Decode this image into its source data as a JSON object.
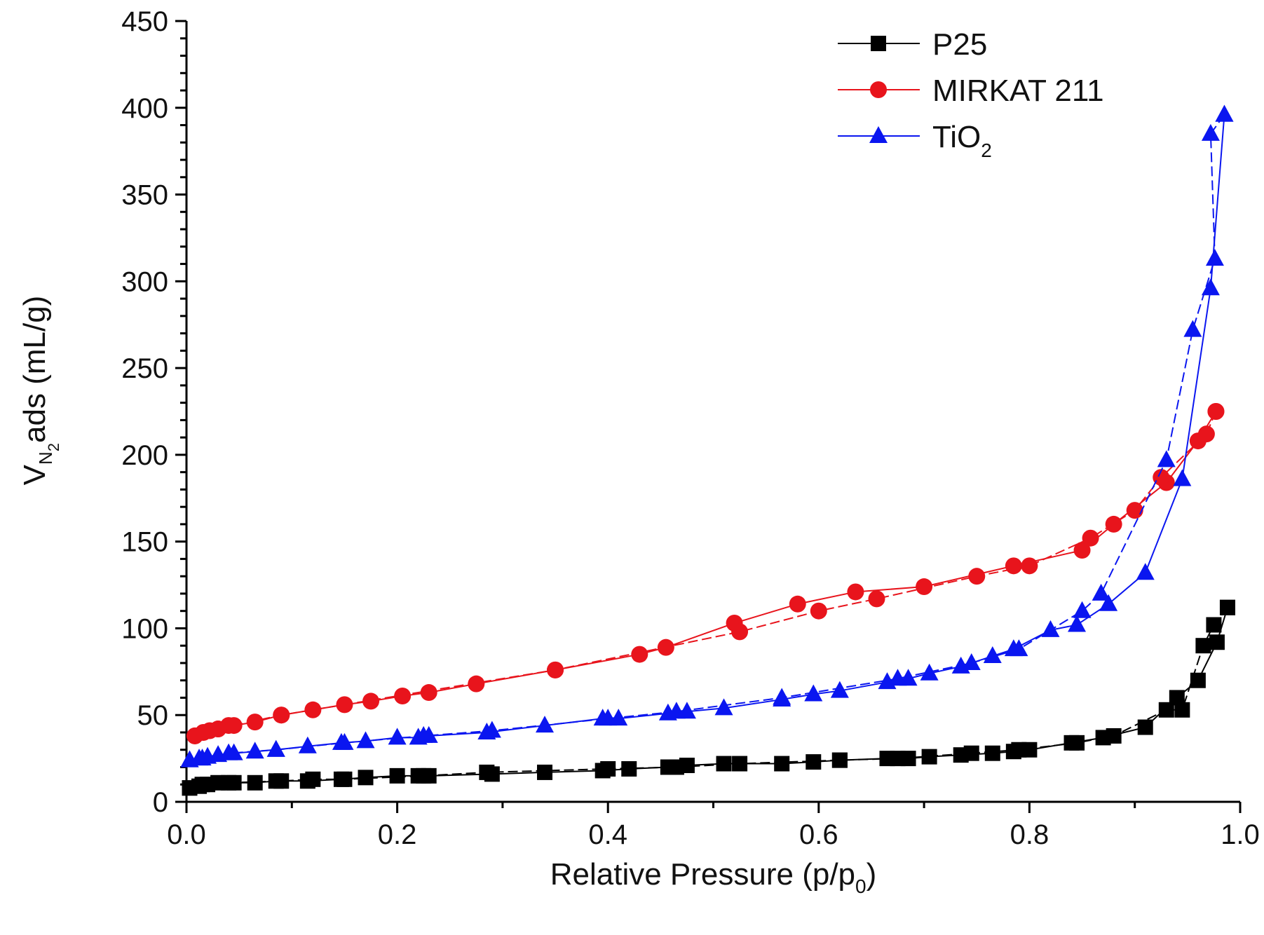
{
  "chart_data": {
    "type": "scatter",
    "title": "",
    "xlabel": {
      "main": "Relative Pressure (p/p",
      "sub": "0",
      "tail": ")"
    },
    "ylabel": {
      "main": "V",
      "sub1": "N",
      "sub2": "2",
      "tail": "ads (mL/g)"
    },
    "xlim": [
      0.0,
      1.0
    ],
    "ylim": [
      0,
      450
    ],
    "xticks": [
      0.0,
      0.2,
      0.4,
      0.6,
      0.8,
      1.0
    ],
    "xtick_labels": [
      "0.0",
      "0.2",
      "0.4",
      "0.6",
      "0.8",
      "1.0"
    ],
    "yticks": [
      0,
      50,
      100,
      150,
      200,
      250,
      300,
      350,
      400,
      450
    ],
    "ytick_labels": [
      "0",
      "50",
      "100",
      "150",
      "200",
      "250",
      "300",
      "350",
      "400",
      "450"
    ],
    "legend_position": "top-right",
    "series": [
      {
        "name": "P25",
        "name_sub": "",
        "color": "#000000",
        "marker": "square",
        "adsorption": [
          [
            0.003,
            8
          ],
          [
            0.012,
            9
          ],
          [
            0.02,
            10
          ],
          [
            0.03,
            11
          ],
          [
            0.045,
            11
          ],
          [
            0.065,
            11
          ],
          [
            0.085,
            12
          ],
          [
            0.115,
            12
          ],
          [
            0.147,
            13
          ],
          [
            0.17,
            14
          ],
          [
            0.2,
            15
          ],
          [
            0.22,
            15
          ],
          [
            0.23,
            15
          ],
          [
            0.29,
            16
          ],
          [
            0.34,
            17
          ],
          [
            0.395,
            18
          ],
          [
            0.42,
            19
          ],
          [
            0.457,
            20
          ],
          [
            0.475,
            21
          ],
          [
            0.51,
            22
          ],
          [
            0.565,
            22
          ],
          [
            0.595,
            23
          ],
          [
            0.62,
            24
          ],
          [
            0.665,
            25
          ],
          [
            0.685,
            25
          ],
          [
            0.705,
            26
          ],
          [
            0.735,
            27
          ],
          [
            0.765,
            28
          ],
          [
            0.785,
            29
          ],
          [
            0.8,
            30
          ],
          [
            0.84,
            34
          ],
          [
            0.87,
            37
          ],
          [
            0.91,
            43
          ],
          [
            0.94,
            60
          ],
          [
            0.96,
            70
          ],
          [
            0.978,
            92
          ],
          [
            0.988,
            112
          ]
        ],
        "desorption": [
          [
            0.988,
            112
          ],
          [
            0.975,
            102
          ],
          [
            0.965,
            90
          ],
          [
            0.945,
            53
          ],
          [
            0.93,
            53
          ],
          [
            0.88,
            38
          ],
          [
            0.845,
            34
          ],
          [
            0.79,
            30
          ],
          [
            0.745,
            28
          ],
          [
            0.675,
            25
          ],
          [
            0.62,
            24
          ],
          [
            0.525,
            22
          ],
          [
            0.465,
            20
          ],
          [
            0.4,
            19
          ],
          [
            0.285,
            17
          ],
          [
            0.225,
            15
          ],
          [
            0.15,
            13
          ],
          [
            0.12,
            13
          ],
          [
            0.09,
            12
          ],
          [
            0.04,
            11
          ],
          [
            0.015,
            10
          ],
          [
            0.003,
            8
          ]
        ]
      },
      {
        "name": "MIRKAT 211",
        "name_sub": "",
        "color": "#e8141c",
        "marker": "circle",
        "adsorption": [
          [
            0.008,
            38
          ],
          [
            0.016,
            40
          ],
          [
            0.022,
            41
          ],
          [
            0.03,
            42
          ],
          [
            0.04,
            44
          ],
          [
            0.045,
            44
          ],
          [
            0.065,
            46
          ],
          [
            0.09,
            50
          ],
          [
            0.12,
            53
          ],
          [
            0.15,
            56
          ],
          [
            0.175,
            58
          ],
          [
            0.205,
            61
          ],
          [
            0.23,
            63
          ],
          [
            0.275,
            68
          ],
          [
            0.35,
            76
          ],
          [
            0.43,
            85
          ],
          [
            0.455,
            89
          ],
          [
            0.52,
            103
          ],
          [
            0.58,
            114
          ],
          [
            0.635,
            121
          ],
          [
            0.7,
            124
          ],
          [
            0.785,
            136
          ],
          [
            0.85,
            145
          ],
          [
            0.88,
            160
          ],
          [
            0.93,
            184
          ],
          [
            0.96,
            208
          ],
          [
            0.977,
            225
          ]
        ],
        "desorption": [
          [
            0.977,
            225
          ],
          [
            0.968,
            212
          ],
          [
            0.925,
            187
          ],
          [
            0.9,
            168
          ],
          [
            0.858,
            152
          ],
          [
            0.8,
            136
          ],
          [
            0.75,
            130
          ],
          [
            0.655,
            117
          ],
          [
            0.6,
            110
          ],
          [
            0.525,
            98
          ],
          [
            0.35,
            76
          ],
          [
            0.09,
            50
          ],
          [
            0.03,
            42
          ],
          [
            0.008,
            38
          ]
        ]
      },
      {
        "name": "TiO",
        "name_sub": "2",
        "color": "#0a16f0",
        "marker": "triangle",
        "adsorption": [
          [
            0.003,
            24
          ],
          [
            0.012,
            25
          ],
          [
            0.02,
            26
          ],
          [
            0.03,
            27
          ],
          [
            0.045,
            28
          ],
          [
            0.065,
            29
          ],
          [
            0.085,
            30
          ],
          [
            0.115,
            32
          ],
          [
            0.147,
            34
          ],
          [
            0.17,
            35
          ],
          [
            0.2,
            37
          ],
          [
            0.22,
            37
          ],
          [
            0.23,
            38
          ],
          [
            0.285,
            40
          ],
          [
            0.34,
            44
          ],
          [
            0.395,
            48
          ],
          [
            0.41,
            48
          ],
          [
            0.457,
            51
          ],
          [
            0.475,
            52
          ],
          [
            0.51,
            54
          ],
          [
            0.565,
            59
          ],
          [
            0.595,
            62
          ],
          [
            0.62,
            64
          ],
          [
            0.665,
            69
          ],
          [
            0.685,
            71
          ],
          [
            0.705,
            74
          ],
          [
            0.735,
            78
          ],
          [
            0.765,
            84
          ],
          [
            0.785,
            88
          ],
          [
            0.82,
            99
          ],
          [
            0.845,
            102
          ],
          [
            0.875,
            114
          ],
          [
            0.91,
            132
          ],
          [
            0.945,
            186
          ],
          [
            0.972,
            296
          ],
          [
            0.985,
            396
          ]
        ],
        "desorption": [
          [
            0.985,
            396
          ],
          [
            0.972,
            385
          ],
          [
            0.976,
            313
          ],
          [
            0.955,
            272
          ],
          [
            0.93,
            197
          ],
          [
            0.868,
            120
          ],
          [
            0.85,
            110
          ],
          [
            0.79,
            88
          ],
          [
            0.745,
            80
          ],
          [
            0.675,
            71
          ],
          [
            0.565,
            60
          ],
          [
            0.465,
            52
          ],
          [
            0.4,
            48
          ],
          [
            0.29,
            41
          ],
          [
            0.225,
            38
          ],
          [
            0.15,
            34
          ],
          [
            0.085,
            30
          ],
          [
            0.04,
            28
          ],
          [
            0.015,
            25
          ],
          [
            0.003,
            24
          ]
        ]
      }
    ]
  }
}
